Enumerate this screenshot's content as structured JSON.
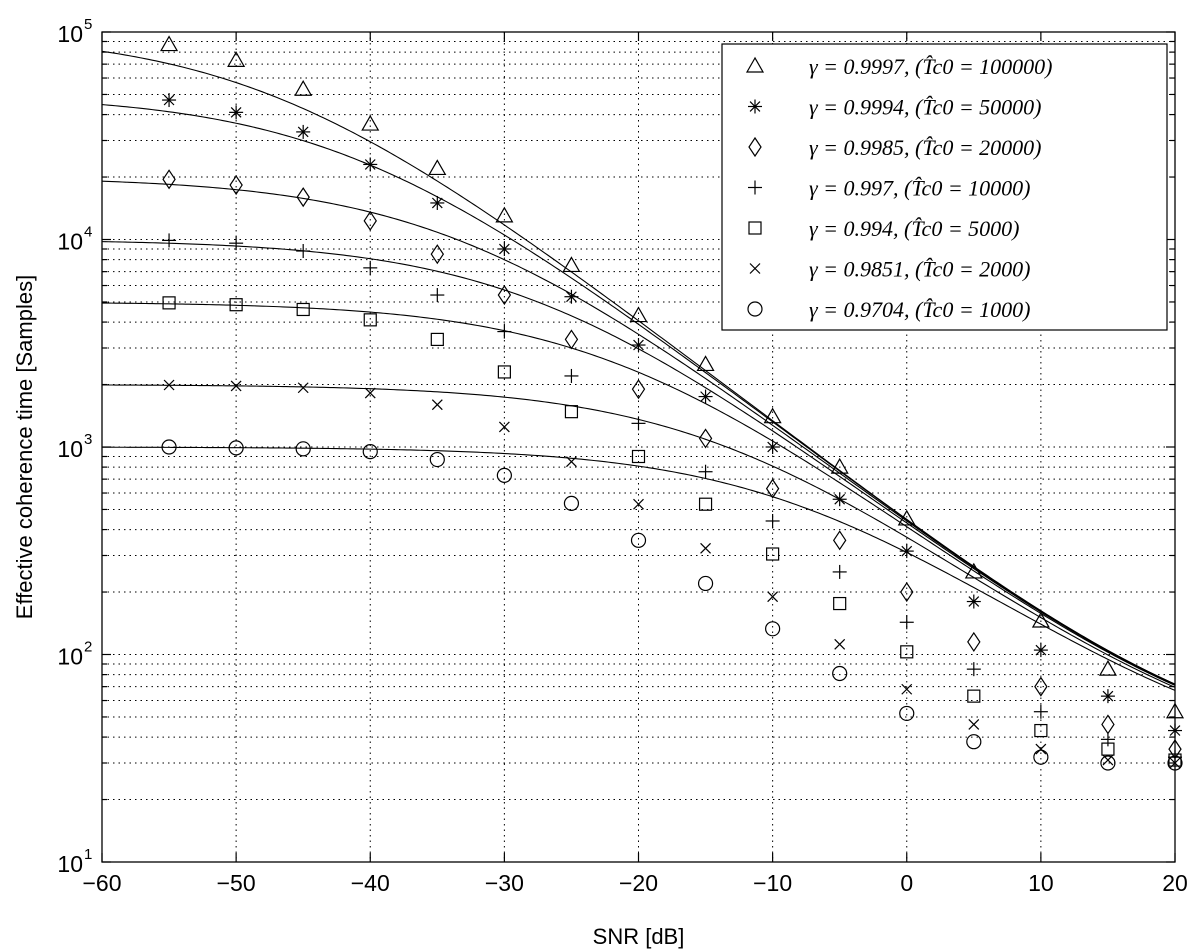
{
  "chart_data": {
    "type": "line",
    "xlabel": "SNR [dB]",
    "ylabel": "Effective coherence time [Samples]",
    "xlim": [
      -60,
      20
    ],
    "ylim": [
      10,
      100000
    ],
    "y_scale": "log",
    "grid": true,
    "legend_position": "top-right",
    "x_ticks": [
      "−60",
      "−50",
      "−40",
      "−30",
      "−20",
      "−10",
      "0",
      "10",
      "20"
    ],
    "x_tick_values": [
      -60,
      -50,
      -40,
      -30,
      -20,
      -10,
      0,
      10,
      20
    ],
    "y_ticks": [
      {
        "value": 10,
        "base": "10",
        "exp": "1"
      },
      {
        "value": 100,
        "base": "10",
        "exp": "2"
      },
      {
        "value": 1000,
        "base": "10",
        "exp": "3"
      },
      {
        "value": 10000,
        "base": "10",
        "exp": "4"
      },
      {
        "value": 100000,
        "base": "10",
        "exp": "5"
      }
    ],
    "marker_x": [
      -55,
      -50,
      -45,
      -40,
      -35,
      -30,
      -25,
      -20,
      -15,
      -10,
      -5,
      0,
      5,
      10,
      15,
      20
    ],
    "series": [
      {
        "name": "γ = 0.9997, (T̂c0 = 100000)",
        "marker": "triangle",
        "T0": 100000,
        "values": [
          87000,
          73000,
          53000,
          36000,
          22000,
          13000,
          7500,
          4300,
          2500,
          1400,
          800,
          450,
          250,
          145,
          85,
          53
        ]
      },
      {
        "name": "γ = 0.9994, (T̂c0 = 50000)",
        "marker": "asterisk",
        "T0": 50000,
        "values": [
          47000,
          41000,
          33000,
          23000,
          15000,
          9000,
          5300,
          3100,
          1750,
          1000,
          560,
          315,
          180,
          105,
          63,
          43
        ]
      },
      {
        "name": "γ = 0.9985, (T̂c0 = 20000)",
        "marker": "diamond",
        "T0": 20000,
        "values": [
          19500,
          18300,
          16000,
          12300,
          8500,
          5400,
          3300,
          1900,
          1100,
          630,
          355,
          200,
          115,
          70,
          46,
          35
        ]
      },
      {
        "name": "γ = 0.997, (T̂c0 = 10000)",
        "marker": "plus",
        "T0": 10000,
        "values": [
          9900,
          9600,
          8800,
          7300,
          5400,
          3600,
          2200,
          1300,
          760,
          440,
          250,
          143,
          85,
          53,
          39,
          32
        ]
      },
      {
        "name": "γ = 0.994, (T̂c0 = 5000)",
        "marker": "square",
        "T0": 5000,
        "values": [
          4950,
          4850,
          4600,
          4100,
          3300,
          2300,
          1480,
          900,
          530,
          305,
          176,
          103,
          63,
          43,
          35,
          31
        ]
      },
      {
        "name": "γ = 0.9851, (T̂c0 = 2000)",
        "marker": "x",
        "T0": 2000,
        "values": [
          1990,
          1970,
          1930,
          1820,
          1600,
          1250,
          850,
          530,
          325,
          190,
          112,
          68,
          46,
          35,
          31,
          30
        ]
      },
      {
        "name": "γ = 0.9704, (T̂c0 = 1000)",
        "marker": "circle",
        "T0": 1000,
        "values": [
          1000,
          990,
          980,
          950,
          870,
          730,
          535,
          355,
          220,
          133,
          81,
          52,
          38,
          32,
          30,
          30
        ]
      }
    ],
    "legend": [
      {
        "gamma": "γ = 0.9997,",
        "tc": "(T̂c0 = 100000)"
      },
      {
        "gamma": "γ = 0.9994,",
        "tc": "(T̂c0 = 50000)"
      },
      {
        "gamma": "γ = 0.9985,",
        "tc": "(T̂c0 = 20000)"
      },
      {
        "gamma": "γ = 0.997,",
        "tc": "(T̂c0 = 10000)"
      },
      {
        "gamma": "γ = 0.994,",
        "tc": "(T̂c0 = 5000)"
      },
      {
        "gamma": "γ = 0.9851,",
        "tc": "(T̂c0 = 2000)"
      },
      {
        "gamma": "γ = 0.9704,",
        "tc": "(T̂c0 = 1000)"
      }
    ]
  }
}
